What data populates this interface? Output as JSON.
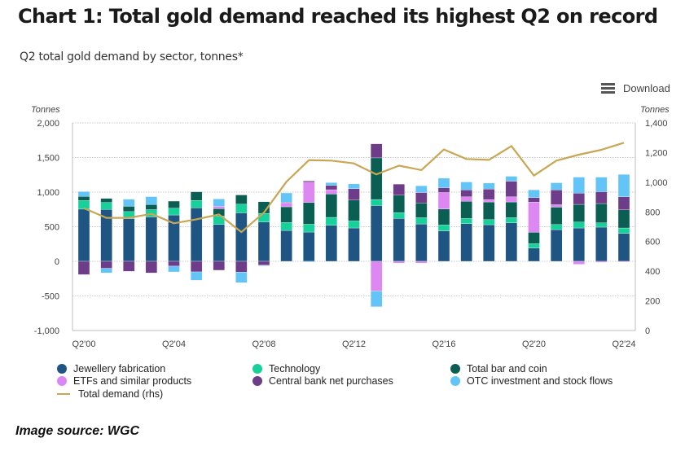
{
  "header": {
    "title": "Chart 1: Total gold demand reached its highest Q2 on record",
    "subtitle": "Q2 total gold demand by sector, tonnes*",
    "download_label": "Download",
    "download_icon": "hamburger-menu-icon"
  },
  "source": "Image source: WGC",
  "chart_data": {
    "type": "bar",
    "stacked": true,
    "title": "Chart 1: Total gold demand reached its highest Q2 on record",
    "subtitle": "Q2 total gold demand by sector, tonnes*",
    "xlabel": "",
    "ylabel": "Tonnes",
    "y2label": "Tonnes",
    "ylim": [
      -1000,
      2000
    ],
    "y2lim": [
      0,
      1400
    ],
    "yticks": [
      "-1,000",
      "-500",
      "0",
      "500",
      "1,000",
      "1,500",
      "2,000"
    ],
    "yticks_values": [
      -1000,
      -500,
      0,
      500,
      1000,
      1500,
      2000
    ],
    "y2ticks": [
      "0",
      "200",
      "400",
      "600",
      "800",
      "1,000",
      "1,200",
      "1,400"
    ],
    "y2ticks_values": [
      0,
      200,
      400,
      600,
      800,
      1000,
      1200,
      1400
    ],
    "grid": true,
    "legend_position": "bottom",
    "categories": [
      "Q2'00",
      "Q2'01",
      "Q2'02",
      "Q2'03",
      "Q2'04",
      "Q2'05",
      "Q2'06",
      "Q2'07",
      "Q2'08",
      "Q2'09",
      "Q2'10",
      "Q2'11",
      "Q2'12",
      "Q2'13",
      "Q2'14",
      "Q2'15",
      "Q2'16",
      "Q2'17",
      "Q2'18",
      "Q2'19",
      "Q2'20",
      "Q2'21",
      "Q2'22",
      "Q2'23",
      "Q2'24"
    ],
    "xtick_labels": [
      "Q2'00",
      "Q2'04",
      "Q2'08",
      "Q2'12",
      "Q2'16",
      "Q2'20",
      "Q2'24"
    ],
    "xtick_indices": [
      0,
      4,
      8,
      12,
      16,
      20,
      24
    ],
    "series": [
      {
        "name": "Jewellery fabrication",
        "color": "#1f5582",
        "type": "bar",
        "values": [
          754,
          749,
          617,
          641,
          670,
          772,
          533,
          700,
          567,
          446,
          423,
          521,
          482,
          806,
          619,
          540,
          440,
          545,
          529,
          557,
          192,
          458,
          482,
          494,
          404
        ]
      },
      {
        "name": "Technology",
        "color": "#17d19a",
        "type": "bar",
        "values": [
          125,
          102,
          102,
          106,
          98,
          108,
          122,
          126,
          126,
          115,
          113,
          114,
          102,
          87,
          85,
          90,
          85,
          74,
          74,
          74,
          63,
          74,
          86,
          62,
          78
        ]
      },
      {
        "name": "Total bar and coin",
        "color": "#0a5e52",
        "type": "bar",
        "values": [
          59,
          58,
          76,
          74,
          102,
          125,
          105,
          133,
          168,
          227,
          313,
          337,
          300,
          602,
          251,
          215,
          231,
          250,
          255,
          227,
          164,
          251,
          255,
          279,
          262
        ]
      },
      {
        "name": "ETFs and similar products",
        "color": "#dd88f2",
        "type": "bar",
        "values": [
          0,
          0,
          0,
          0,
          0,
          0,
          35,
          0,
          0,
          55,
          294,
          63,
          0,
          -430,
          -25,
          -25,
          238,
          63,
          35,
          74,
          438,
          35,
          -43,
          -15,
          -8
        ]
      },
      {
        "name": "Central bank net purchases",
        "color": "#6e3d8a",
        "type": "bar",
        "values": [
          -192,
          -101,
          -145,
          -168,
          -70,
          -153,
          -129,
          -157,
          -55,
          10,
          19,
          63,
          165,
          203,
          161,
          149,
          70,
          101,
          152,
          226,
          63,
          215,
          161,
          171,
          188
        ]
      },
      {
        "name": "OTC investment and stock flows",
        "color": "#63c5f7",
        "type": "bar",
        "values": [
          70,
          -67,
          102,
          114,
          -83,
          -121,
          106,
          -153,
          -10,
          135,
          -10,
          39,
          70,
          -227,
          0,
          98,
          137,
          114,
          86,
          71,
          113,
          102,
          233,
          211,
          324
        ]
      },
      {
        "name": "Total demand (rhs)",
        "color": "#c9a653",
        "type": "line",
        "axis": "right",
        "values": [
          825,
          760,
          760,
          787,
          723,
          750,
          783,
          664,
          795,
          1003,
          1149,
          1146,
          1127,
          1053,
          1112,
          1082,
          1221,
          1157,
          1151,
          1244,
          1045,
          1146,
          1186,
          1219,
          1266
        ]
      }
    ]
  }
}
